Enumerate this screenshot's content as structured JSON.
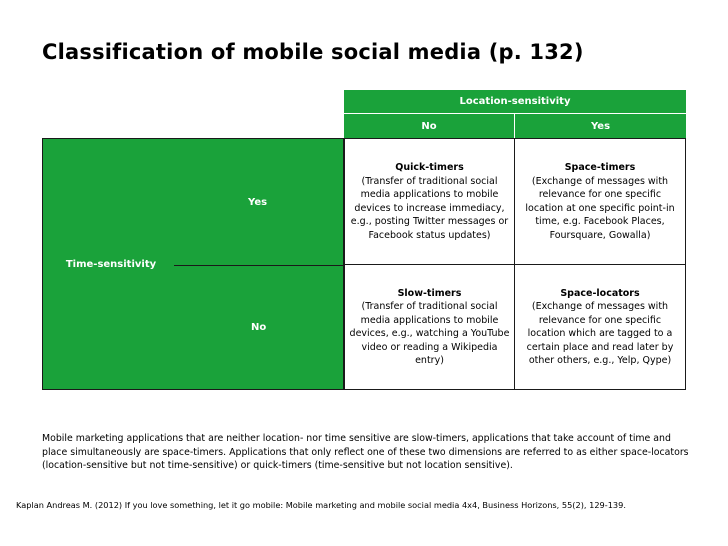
{
  "title": "Classification of mobile social media (p. 132)",
  "header": {
    "location_sensitivity": "Location-sensitivity",
    "no": "No",
    "yes": "Yes"
  },
  "rows": {
    "yes": "Yes",
    "time_sensitivity": "Time-sensitivity",
    "no": "No"
  },
  "cells": {
    "quick_timers": {
      "title": "Quick-timers",
      "body": "(Transfer of traditional social media applications to mobile devices to increase immediacy, e.g., posting Twitter messages or Facebook status updates)"
    },
    "space_timers": {
      "title": "Space-timers",
      "body": "(Exchange of messages with relevance for one specific location at one specific point-in time, e.g. Facebook Places, Foursquare, Gowalla)"
    },
    "slow_timers": {
      "title": "Slow-timers",
      "body": "(Transfer of traditional social media applications to mobile devices, e.g., watching a YouTube video or reading a Wikipedia entry)"
    },
    "space_locators": {
      "title": "Space-locators",
      "body": "(Exchange of messages with relevance for one specific location which are tagged to a certain place and read later by other others, e.g., Yelp, Qype)"
    }
  },
  "note": "Mobile marketing applications that are neither location- nor time sensitive are slow-timers, applications that take account of time and place simultaneously are space-timers. Applications that only reflect one of these two dimensions are referred to as either space-locators (location-sensitive but not time-sensitive) or quick-timers (time-sensitive but not location sensitive).",
  "citation": "Kaplan Andreas M. (2012) If you love something, let it go mobile: Mobile marketing and mobile social media 4x4, Business Horizons, 55(2), 129-139.",
  "colors": {
    "green": "#1aa23a",
    "border": "#1a1a1a"
  }
}
